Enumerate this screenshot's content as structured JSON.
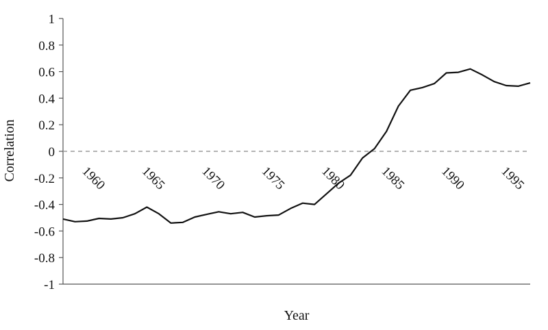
{
  "chart_data": {
    "type": "line",
    "title": "",
    "xlabel": "Year",
    "ylabel": "Correlation",
    "ylim": [
      -1,
      1
    ],
    "xlim": [
      1958,
      1997
    ],
    "grid": false,
    "legend": "none",
    "reference_line": {
      "y": 0,
      "style": "dashed",
      "color": "#999999"
    },
    "yticks": [
      {
        "value": 1,
        "label": "1"
      },
      {
        "value": 0.8,
        "label": "0.8"
      },
      {
        "value": 0.6,
        "label": "0.6"
      },
      {
        "value": 0.4,
        "label": "0.4"
      },
      {
        "value": 0.2,
        "label": "0.2"
      },
      {
        "value": 0,
        "label": "0"
      },
      {
        "value": -0.2,
        "label": "-0.2"
      },
      {
        "value": -0.4,
        "label": "-0.4"
      },
      {
        "value": -0.6,
        "label": "-0.6"
      },
      {
        "value": -0.8,
        "label": "-0.8"
      },
      {
        "value": -1,
        "label": "-1"
      }
    ],
    "xticks": [
      {
        "value": 1960,
        "label": "1960"
      },
      {
        "value": 1965,
        "label": "1965"
      },
      {
        "value": 1970,
        "label": "1970"
      },
      {
        "value": 1975,
        "label": "1975"
      },
      {
        "value": 1980,
        "label": "1980"
      },
      {
        "value": 1985,
        "label": "1985"
      },
      {
        "value": 1990,
        "label": "1990"
      },
      {
        "value": 1995,
        "label": "1995"
      }
    ],
    "series": [
      {
        "color": "#111111",
        "x": [
          1958,
          1959,
          1960,
          1961,
          1962,
          1963,
          1964,
          1965,
          1966,
          1967,
          1968,
          1969,
          1970,
          1971,
          1972,
          1973,
          1974,
          1975,
          1976,
          1977,
          1978,
          1979,
          1980,
          1981,
          1982,
          1983,
          1984,
          1985,
          1986,
          1987,
          1988,
          1989,
          1990,
          1991,
          1992,
          1993,
          1994,
          1995,
          1996,
          1997
        ],
        "values": [
          -0.51,
          -0.53,
          -0.525,
          -0.505,
          -0.51,
          -0.5,
          -0.47,
          -0.42,
          -0.47,
          -0.54,
          -0.535,
          -0.495,
          -0.475,
          -0.455,
          -0.47,
          -0.46,
          -0.495,
          -0.485,
          -0.48,
          -0.43,
          -0.39,
          -0.4,
          -0.32,
          -0.24,
          -0.18,
          -0.05,
          0.02,
          0.15,
          0.34,
          0.46,
          0.48,
          0.51,
          0.59,
          0.595,
          0.62,
          0.575,
          0.525,
          0.495,
          0.49,
          0.515
        ]
      }
    ]
  }
}
